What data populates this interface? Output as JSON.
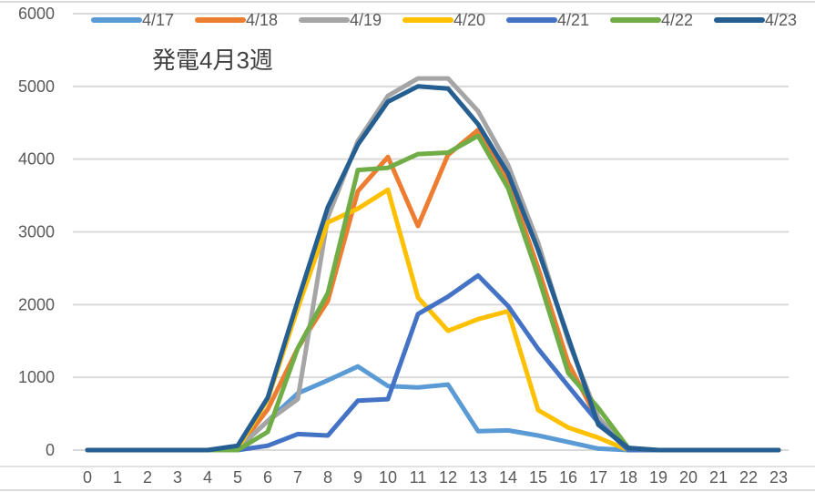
{
  "chart_data": {
    "type": "line",
    "title": "発電4月3週",
    "xlabel": "",
    "ylabel": "",
    "ylim": [
      0,
      6000
    ],
    "yticks": [
      0,
      1000,
      2000,
      3000,
      4000,
      5000,
      6000
    ],
    "grid": true,
    "legend_position": "top",
    "x": [
      0,
      1,
      2,
      3,
      4,
      5,
      6,
      7,
      8,
      9,
      10,
      11,
      12,
      13,
      14,
      15,
      16,
      17,
      18,
      19,
      20,
      21,
      22,
      23
    ],
    "series": [
      {
        "name": "4/17",
        "color": "#5B9BD5",
        "values": [
          0,
          0,
          0,
          0,
          0,
          20,
          400,
          780,
          960,
          1150,
          880,
          860,
          900,
          260,
          270,
          200,
          110,
          20,
          0,
          0,
          0,
          0,
          0,
          0
        ]
      },
      {
        "name": "4/18",
        "color": "#ED7D31",
        "values": [
          0,
          0,
          0,
          0,
          0,
          20,
          560,
          1400,
          2050,
          3560,
          4030,
          3080,
          4060,
          4400,
          3700,
          2500,
          1200,
          400,
          0,
          0,
          0,
          0,
          0,
          0
        ]
      },
      {
        "name": "4/19",
        "color": "#A5A5A5",
        "values": [
          0,
          0,
          0,
          0,
          0,
          20,
          400,
          700,
          3200,
          4250,
          4870,
          5110,
          5110,
          4660,
          3920,
          2850,
          1500,
          450,
          0,
          0,
          0,
          0,
          0,
          0
        ]
      },
      {
        "name": "4/20",
        "color": "#FFC000",
        "values": [
          0,
          0,
          0,
          0,
          0,
          20,
          700,
          1950,
          3130,
          3320,
          3580,
          2100,
          1640,
          1800,
          1910,
          550,
          310,
          170,
          0,
          0,
          0,
          0,
          0,
          0
        ]
      },
      {
        "name": "4/21",
        "color": "#4472C4",
        "values": [
          0,
          0,
          0,
          0,
          0,
          0,
          60,
          220,
          200,
          680,
          700,
          1870,
          2110,
          2400,
          1980,
          1390,
          880,
          380,
          0,
          0,
          0,
          0,
          0,
          0
        ]
      },
      {
        "name": "4/22",
        "color": "#70AD47",
        "values": [
          0,
          0,
          0,
          0,
          0,
          0,
          250,
          1400,
          2160,
          3850,
          3880,
          4070,
          4090,
          4320,
          3600,
          2390,
          1060,
          580,
          30,
          0,
          0,
          0,
          0,
          0
        ]
      },
      {
        "name": "4/23",
        "color": "#255E91",
        "values": [
          0,
          0,
          0,
          0,
          0,
          60,
          720,
          2050,
          3340,
          4200,
          4790,
          5000,
          4970,
          4480,
          3800,
          2750,
          1550,
          350,
          30,
          0,
          0,
          0,
          0,
          0
        ]
      }
    ]
  },
  "legend": {
    "items": [
      "4/17",
      "4/18",
      "4/19",
      "4/20",
      "4/21",
      "4/22",
      "4/23"
    ]
  },
  "axes": {
    "y_labels": [
      "0",
      "1000",
      "2000",
      "3000",
      "4000",
      "5000",
      "6000"
    ],
    "x_labels": [
      "0",
      "1",
      "2",
      "3",
      "4",
      "5",
      "6",
      "7",
      "8",
      "9",
      "10",
      "11",
      "12",
      "13",
      "14",
      "15",
      "16",
      "17",
      "18",
      "19",
      "20",
      "21",
      "22",
      "23"
    ]
  },
  "style": {
    "gridline_color": "#D9D9D9",
    "text_color": "#595959",
    "title_color": "#404040"
  }
}
